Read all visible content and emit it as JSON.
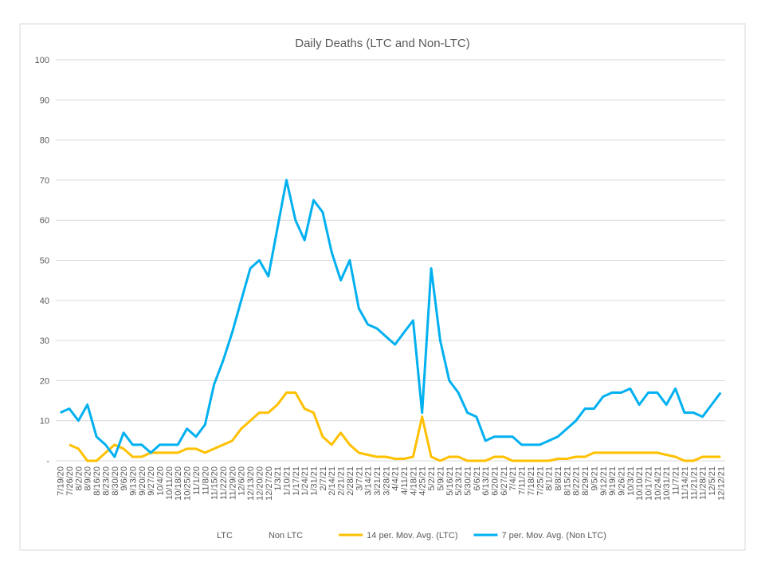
{
  "chart_data": {
    "type": "line",
    "title": "Daily Deaths (LTC and Non-LTC)",
    "categories": [
      "7/19/20",
      "7/26/20",
      "8/2/20",
      "8/9/20",
      "8/16/20",
      "8/23/20",
      "8/30/20",
      "9/6/20",
      "9/13/20",
      "9/20/20",
      "9/27/20",
      "10/4/20",
      "10/11/20",
      "10/18/20",
      "10/25/20",
      "11/1/20",
      "11/8/20",
      "11/15/20",
      "11/22/20",
      "11/29/20",
      "12/6/20",
      "12/13/20",
      "12/20/20",
      "12/27/20",
      "1/3/21",
      "1/10/21",
      "1/17/21",
      "1/24/21",
      "1/31/21",
      "2/7/21",
      "2/14/21",
      "2/21/21",
      "2/28/21",
      "3/7/21",
      "3/14/21",
      "3/21/21",
      "3/28/21",
      "4/4/21",
      "4/11/21",
      "4/18/21",
      "4/25/21",
      "5/2/21",
      "5/9/21",
      "5/16/21",
      "5/23/21",
      "5/30/21",
      "6/6/21",
      "6/13/21",
      "6/20/21",
      "6/27/21",
      "7/4/21",
      "7/11/21",
      "7/18/21",
      "7/25/21",
      "8/1/21",
      "8/8/21",
      "8/15/21",
      "8/22/21",
      "8/29/21",
      "9/5/21",
      "9/12/21",
      "9/19/21",
      "9/26/21",
      "10/3/21",
      "10/10/21",
      "10/17/21",
      "10/24/21",
      "10/31/21",
      "11/7/21",
      "11/14/21",
      "11/21/21",
      "11/28/21",
      "12/5/21",
      "12/12/21"
    ],
    "legend_extra": [
      "LTC",
      "Non LTC"
    ],
    "series": [
      {
        "name": "14 per. Mov. Avg. (LTC)",
        "color": "#ffc000",
        "values": [
          null,
          4,
          3,
          0,
          0,
          2,
          4,
          3,
          1,
          1,
          2,
          2,
          2,
          2,
          3,
          3,
          2,
          3,
          4,
          5,
          8,
          10,
          12,
          12,
          14,
          17,
          17,
          13,
          12,
          6,
          4,
          7,
          4,
          2,
          1.5,
          1,
          1,
          0.5,
          0.5,
          1,
          11,
          1,
          0,
          1,
          1,
          0,
          0,
          0,
          1,
          1,
          0,
          0,
          0,
          0,
          0,
          0.5,
          0.5,
          1,
          1,
          2,
          2,
          2,
          2,
          2,
          2,
          2,
          2,
          1.5,
          1,
          0,
          0,
          1,
          1,
          1
        ]
      },
      {
        "name": "7 per. Mov. Avg. (Non LTC)",
        "color": "#00b0f0",
        "values": [
          12,
          13,
          10,
          14,
          6,
          4,
          1,
          7,
          4,
          4,
          2,
          4,
          4,
          4,
          8,
          6,
          9,
          19,
          25,
          32,
          40,
          48,
          50,
          46,
          58,
          70,
          60,
          55,
          65,
          62,
          52,
          45,
          50,
          38,
          34,
          33,
          31,
          29,
          32,
          35,
          12,
          48,
          30,
          20,
          17,
          12,
          11,
          5,
          6,
          6,
          6,
          4,
          4,
          4,
          5,
          6,
          8,
          10,
          13,
          13,
          16,
          17,
          17,
          18,
          14,
          17,
          17,
          14,
          18,
          12,
          12,
          11,
          14,
          17
        ]
      }
    ],
    "ylim": [
      0,
      100
    ],
    "yticks": [
      {
        "value": 0,
        "label": "-"
      },
      10,
      20,
      30,
      40,
      50,
      60,
      70,
      80,
      90,
      100
    ],
    "grid": true
  }
}
